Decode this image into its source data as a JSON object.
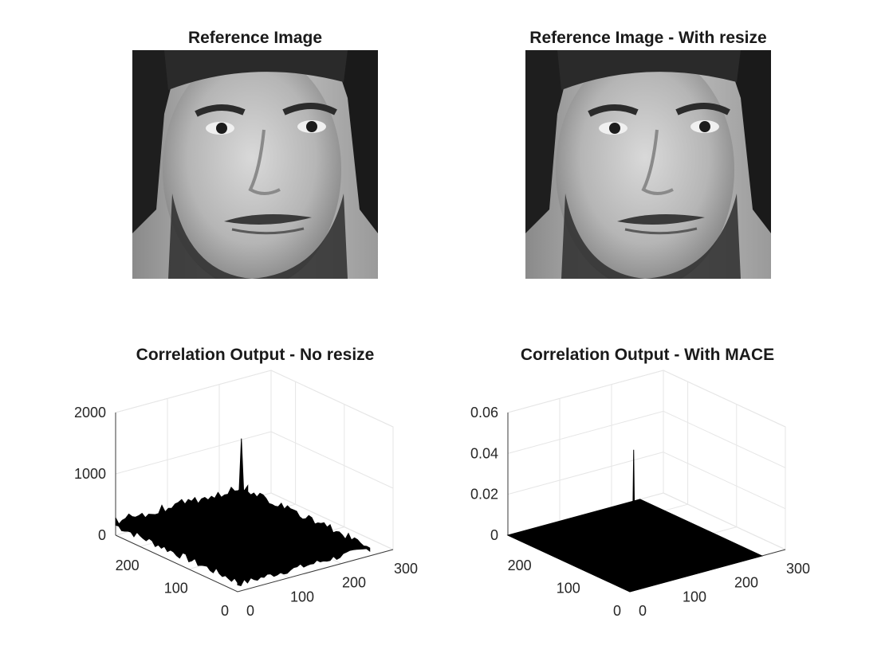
{
  "figure": {
    "panels": [
      {
        "title": "Reference Image"
      },
      {
        "title": "Reference Image - With resize"
      }
    ]
  },
  "chart_data": [
    {
      "type": "image",
      "title": "Reference Image",
      "image": "grayscale-face-photo"
    },
    {
      "type": "image",
      "title": "Reference Image - With resize",
      "image": "grayscale-face-photo"
    },
    {
      "type": "surface",
      "title": "Correlation Output - No resize",
      "xlim": [
        0,
        300
      ],
      "ylim": [
        0,
        250
      ],
      "zlim": [
        0,
        2000
      ],
      "xticks": [
        "0",
        "100",
        "200",
        "300"
      ],
      "yticks": [
        "0",
        "100",
        "200"
      ],
      "zticks": [
        "0",
        "1000",
        "2000"
      ],
      "peak": {
        "x": 125,
        "y": 125,
        "z": 1750
      },
      "noise_floor_max": 300,
      "grid": true,
      "color": "#000000"
    },
    {
      "type": "surface",
      "title": "Correlation Output - With MACE",
      "xlim": [
        0,
        300
      ],
      "ylim": [
        0,
        250
      ],
      "zlim": [
        0,
        0.06
      ],
      "xticks": [
        "0",
        "100",
        "200",
        "300"
      ],
      "yticks": [
        "0",
        "100",
        "200"
      ],
      "zticks": [
        "0",
        "0.02",
        "0.04",
        "0.06"
      ],
      "peak": {
        "x": 125,
        "y": 125,
        "z": 0.047
      },
      "noise_floor_max": 0,
      "grid": true,
      "color": "#000000"
    }
  ]
}
